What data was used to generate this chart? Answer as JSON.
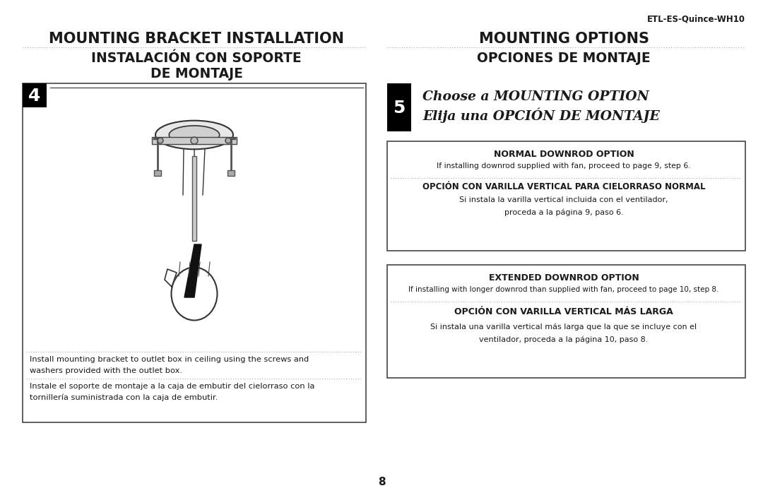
{
  "bg_color": "#ffffff",
  "text_color": "#1a1a1a",
  "page_number": "8",
  "header_model": "ETL-ES-Quince-WH10",
  "left_title_en": "MOUNTING BRACKET INSTALLATION",
  "left_title_es1": "INSTALACIÓN CON SOPORTE",
  "left_title_es2": "DE MONTAJE",
  "right_title_en": "MOUNTING OPTIONS",
  "right_title_es": "OPCIONES DE MONTAJE",
  "step4_label": "4",
  "step5_label": "5",
  "step5_title_en": "Choose a MOUNTING OPTION",
  "step5_title_es": "Elija una OPCIÓN DE MONTAJE",
  "box1_title": "NORMAL DOWNROD OPTION",
  "box1_en": "If installing downrod supplied with fan, proceed to page 9, step 6.",
  "box1_es_title": "OPCIÓN CON VARILLA VERTICAL PARA CIELORRASO NORMAL",
  "box1_es1": "Si instala la varilla vertical incluida con el ventilador,",
  "box1_es2": "proceda a la página 9, paso 6.",
  "box2_title": "EXTENDED DOWNROD OPTION",
  "box2_en": "If installing with longer downrod than supplied with fan, proceed to page 10, step 8.",
  "box2_es_title": "OPCIÓN CON VARILLA VERTICAL MÁS LARGA",
  "box2_es1": "Si instala una varilla vertical más larga que la que se incluye con el",
  "box2_es2": "ventilador, proceda a la página 10, paso 8.",
  "left_box_en1": "Install mounting bracket to outlet box in ceiling using the screws and",
  "left_box_en2": "washers provided with the outlet box.",
  "left_box_es1": "Instale el soporte de montaje a la caja de embutir del cielorraso con la",
  "left_box_es2": "tornillería suministrada con la caja de embutir."
}
